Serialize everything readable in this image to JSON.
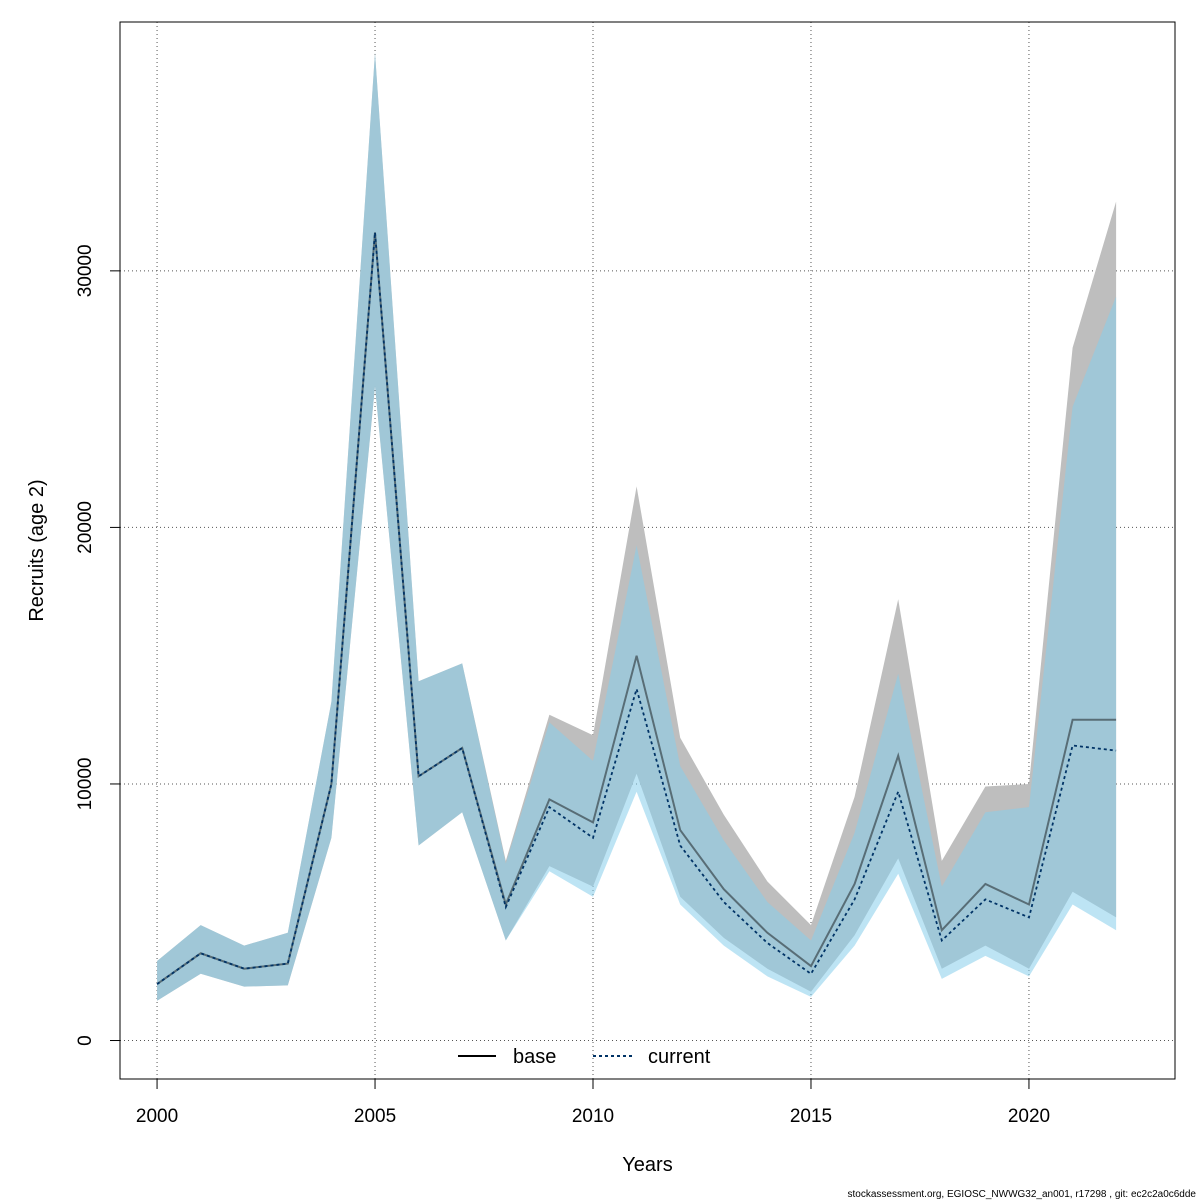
{
  "chart_data": {
    "type": "line",
    "xlabel": "Years",
    "ylabel": "Recruits (age 2)",
    "xlim": [
      1999.15,
      2023.35
    ],
    "ylim": [
      -1500,
      39700
    ],
    "x_ticks": [
      2000,
      2005,
      2010,
      2015,
      2020
    ],
    "y_ticks": [
      0,
      10000,
      20000,
      30000
    ],
    "grid": true,
    "grid_style": "dotted",
    "legend_position": "bottom-center",
    "x": [
      2000,
      2001,
      2002,
      2003,
      2004,
      2005,
      2006,
      2007,
      2008,
      2009,
      2010,
      2011,
      2012,
      2013,
      2014,
      2015,
      2016,
      2017,
      2018,
      2019,
      2020,
      2021,
      2022
    ],
    "series": [
      {
        "name": "base",
        "line_style": "solid",
        "color": "#000000",
        "band_color": "#bebebe",
        "values": [
          2200,
          3400,
          2800,
          3000,
          10000,
          31500,
          10300,
          11400,
          5300,
          9400,
          8500,
          15000,
          8200,
          5900,
          4200,
          2900,
          6100,
          11100,
          4300,
          6100,
          5300,
          12500,
          12500
        ],
        "lower": [
          1550,
          2600,
          2100,
          2150,
          7900,
          25500,
          7600,
          8900,
          3900,
          6800,
          6000,
          10400,
          5600,
          4000,
          2800,
          1900,
          4100,
          7100,
          2800,
          3700,
          2800,
          5800,
          4800
        ],
        "upper": [
          3100,
          4500,
          3700,
          4200,
          13200,
          38500,
          14000,
          14700,
          7000,
          12700,
          11900,
          21600,
          11800,
          8800,
          6200,
          4500,
          9500,
          17200,
          7000,
          9900,
          10000,
          27000,
          32700
        ]
      },
      {
        "name": "current",
        "line_style": "dotted",
        "color": "#003366",
        "band_color": "#87ceeb",
        "values": [
          2200,
          3400,
          2800,
          3000,
          10000,
          31500,
          10300,
          11400,
          5200,
          9100,
          7900,
          13700,
          7600,
          5400,
          3800,
          2600,
          5500,
          9700,
          3900,
          5500,
          4800,
          11500,
          11300
        ],
        "lower": [
          1550,
          2600,
          2100,
          2150,
          7900,
          25500,
          7600,
          8900,
          3900,
          6600,
          5600,
          9700,
          5300,
          3700,
          2500,
          1700,
          3700,
          6500,
          2400,
          3300,
          2500,
          5300,
          4300
        ],
        "upper": [
          3100,
          4500,
          3700,
          4200,
          13200,
          38500,
          14000,
          14700,
          6900,
          12400,
          10900,
          19300,
          10700,
          7800,
          5400,
          3900,
          8100,
          14300,
          6000,
          8900,
          9100,
          24700,
          29000
        ]
      }
    ]
  },
  "footer": "stockassessment.org, EGIOSC_NWWG32_an001, r17298 , git: ec2c2a0c6dde"
}
